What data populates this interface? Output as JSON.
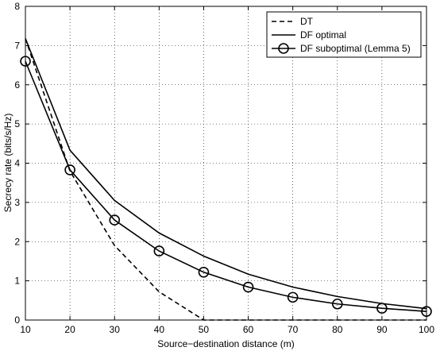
{
  "chart_data": {
    "type": "line",
    "title": "",
    "xlabel": "Source−destination distance (m)",
    "ylabel": "Secrecy rate (bits/s/Hz)",
    "xlim": [
      10,
      100
    ],
    "ylim": [
      0,
      8
    ],
    "xticks": [
      10,
      20,
      30,
      40,
      50,
      60,
      70,
      80,
      90,
      100
    ],
    "yticks": [
      0,
      1,
      2,
      3,
      4,
      5,
      6,
      7,
      8
    ],
    "grid": true,
    "legend_position": "top-right",
    "series": [
      {
        "name": "DT",
        "style": "dashed",
        "marker": "none",
        "color": "#000000",
        "x": [
          10,
          20,
          30,
          40,
          50,
          60,
          70,
          80,
          90,
          100
        ],
        "y": [
          7.18,
          3.8,
          1.9,
          0.72,
          0.0,
          0.0,
          0.0,
          0.0,
          0.0,
          0.0
        ]
      },
      {
        "name": "DF optimal",
        "style": "solid",
        "marker": "none",
        "color": "#000000",
        "x": [
          10,
          20,
          30,
          40,
          50,
          60,
          70,
          80,
          90,
          100
        ],
        "y": [
          7.18,
          4.33,
          3.05,
          2.22,
          1.63,
          1.17,
          0.84,
          0.6,
          0.42,
          0.29
        ]
      },
      {
        "name": "DF suboptimal (Lemma 5)",
        "style": "solid",
        "marker": "circle",
        "color": "#000000",
        "x": [
          10,
          20,
          30,
          40,
          50,
          60,
          70,
          80,
          90,
          100
        ],
        "y": [
          6.6,
          3.83,
          2.55,
          1.76,
          1.22,
          0.84,
          0.58,
          0.41,
          0.3,
          0.22
        ]
      }
    ]
  }
}
